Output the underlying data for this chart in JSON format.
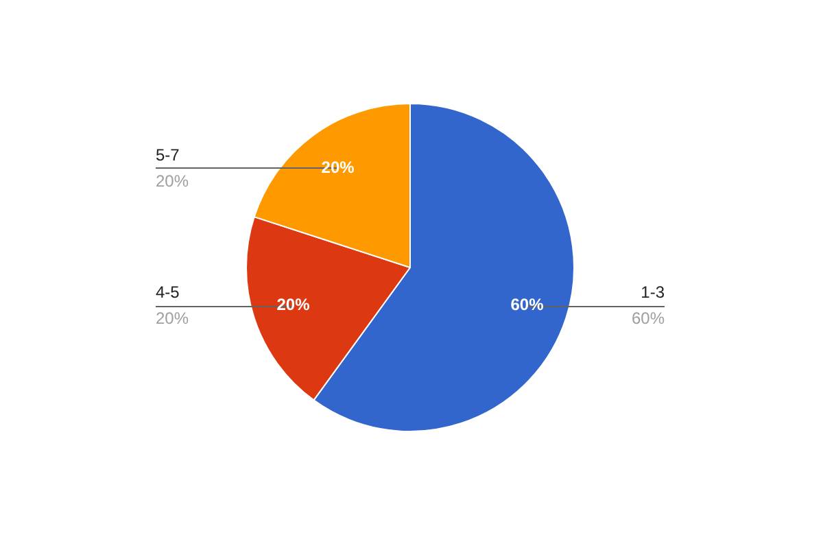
{
  "chart_data": {
    "type": "pie",
    "categories": [
      "1-3",
      "4-5",
      "5-7"
    ],
    "values": [
      60,
      20,
      20
    ],
    "colors": [
      "#3366cc",
      "#dc3912",
      "#ff9900"
    ],
    "value_labels": [
      "60%",
      "20%",
      "20%"
    ]
  }
}
